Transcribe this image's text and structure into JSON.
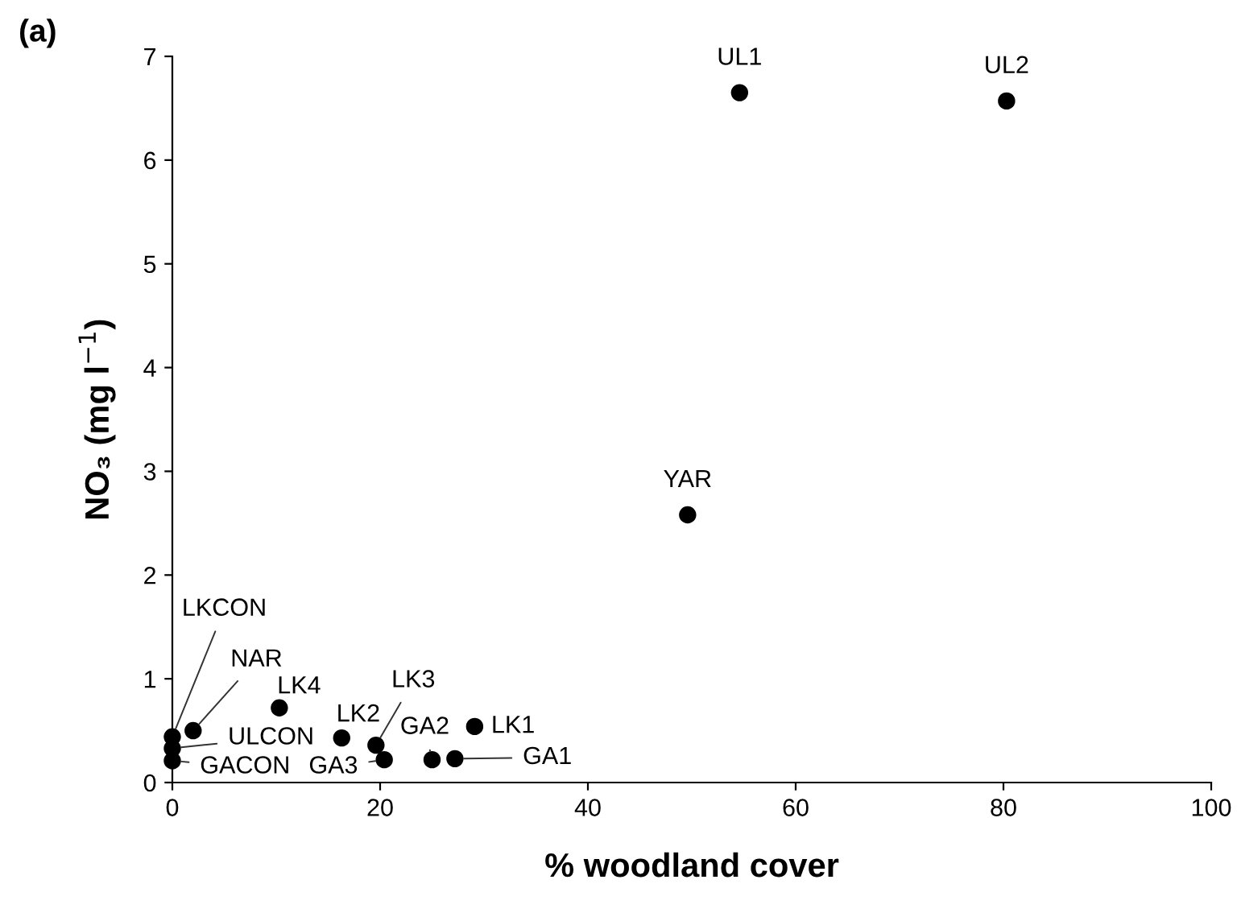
{
  "chart_data": {
    "type": "scatter",
    "title": "(a)",
    "xlabel": "% woodland cover",
    "ylabel": "NO₃ (mg l$^{−1}$)",
    "series": [
      {
        "color": "#000000",
        "x": [
          54.6,
          80.3,
          49.6,
          0,
          2.0,
          10.3,
          16.3,
          19.6,
          20.4,
          25.0,
          27.2,
          29.1,
          0,
          0
        ],
        "values": [
          6.65,
          6.57,
          2.58,
          0.44,
          0.5,
          0.72,
          0.43,
          0.36,
          0.22,
          0.22,
          0.23,
          0.54,
          0.33,
          0.21
        ]
      }
    ],
    "annotations": [
      {
        "text": "UL1",
        "x": 54.6,
        "y": 6.65
      },
      {
        "text": "UL2",
        "x": 80.3,
        "y": 6.57
      },
      {
        "text": "YAR",
        "x": 49.6,
        "y": 2.58
      },
      {
        "text": "LKCON",
        "x": 0,
        "y": 0.44
      },
      {
        "text": "NAR",
        "x": 2.0,
        "y": 0.5
      },
      {
        "text": "LK4",
        "x": 10.3,
        "y": 0.72
      },
      {
        "text": "LK2",
        "x": 16.3,
        "y": 0.43
      },
      {
        "text": "LK3",
        "x": 19.6,
        "y": 0.36
      },
      {
        "text": "GA3",
        "x": 20.4,
        "y": 0.22
      },
      {
        "text": "GA2",
        "x": 25.0,
        "y": 0.22
      },
      {
        "text": "GA1",
        "x": 27.2,
        "y": 0.23
      },
      {
        "text": "LK1",
        "x": 29.1,
        "y": 0.54
      },
      {
        "text": "ULCON",
        "x": 0,
        "y": 0.33
      },
      {
        "text": "GACON",
        "x": 0,
        "y": 0.21
      }
    ],
    "xlim": [
      0,
      100
    ],
    "xticks": [
      0,
      20,
      40,
      60,
      80,
      100
    ],
    "ylim": [
      0,
      7
    ],
    "yticks": [
      0,
      1,
      2,
      3,
      4,
      5,
      6,
      7
    ],
    "marker": "circle",
    "grid": false,
    "legend": false
  }
}
